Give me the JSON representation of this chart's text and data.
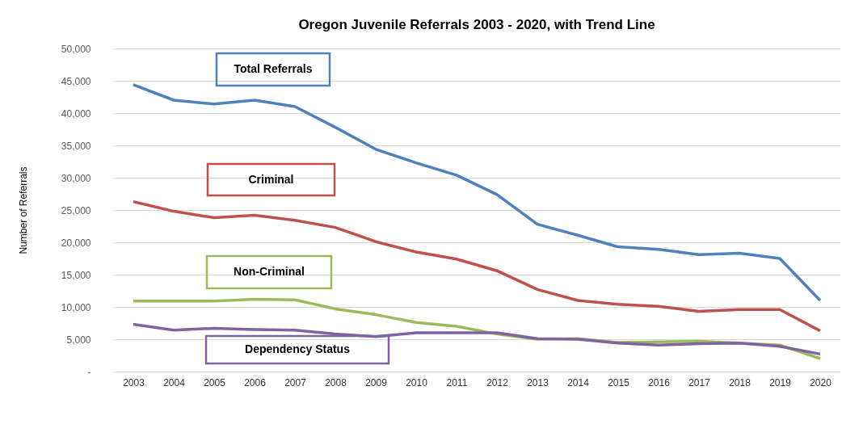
{
  "chart_data": {
    "type": "line",
    "title": "Oregon Juvenile Referrals 2003 - 2020, with Trend Line",
    "ylabel": "Number of Referrals",
    "categories": [
      "2003",
      "2004",
      "2005",
      "2006",
      "2007",
      "2008",
      "2009",
      "2010",
      "2011",
      "2012",
      "2013",
      "2014",
      "2015",
      "2016",
      "2017",
      "2018",
      "2019",
      "2020"
    ],
    "series": [
      {
        "name": "Total Referrals",
        "color": "#4f81bd",
        "values": [
          44400,
          42000,
          41400,
          42000,
          41000,
          37800,
          34400,
          32300,
          30400,
          27400,
          22800,
          21100,
          19300,
          18900,
          18100,
          18300,
          17500,
          11000
        ]
      },
      {
        "name": "Criminal",
        "color": "#c0504d",
        "values": [
          26300,
          24800,
          23800,
          24200,
          23400,
          22300,
          20100,
          18500,
          17400,
          15600,
          12700,
          11000,
          10400,
          10100,
          9300,
          9600,
          9600,
          6300
        ]
      },
      {
        "name": "Non-Criminal",
        "color": "#9bbb59",
        "values": [
          10900,
          10900,
          10900,
          11200,
          11100,
          9700,
          8800,
          7600,
          7000,
          5800,
          5000,
          5100,
          4500,
          4600,
          4700,
          4400,
          4100,
          2000
        ]
      },
      {
        "name": "Dependency Status",
        "color": "#8064a2",
        "values": [
          7300,
          6400,
          6700,
          6500,
          6400,
          5800,
          5400,
          6000,
          6000,
          6000,
          5100,
          5000,
          4400,
          4100,
          4300,
          4400,
          3900,
          2700
        ]
      }
    ],
    "ylim": [
      0,
      50000
    ],
    "yticks": [
      {
        "value": 0,
        "label": "-"
      },
      {
        "value": 5000,
        "label": "5,000"
      },
      {
        "value": 10000,
        "label": "10,000"
      },
      {
        "value": 15000,
        "label": "15,000"
      },
      {
        "value": 20000,
        "label": "20,000"
      },
      {
        "value": 25000,
        "label": "25,000"
      },
      {
        "value": 30000,
        "label": "30,000"
      },
      {
        "value": 35000,
        "label": "35,000"
      },
      {
        "value": 40000,
        "label": "40,000"
      },
      {
        "value": 45000,
        "label": "45,000"
      },
      {
        "value": 50000,
        "label": "50,000"
      }
    ],
    "grid": "y",
    "legend": false,
    "marker": "none",
    "line_style": "solid"
  }
}
